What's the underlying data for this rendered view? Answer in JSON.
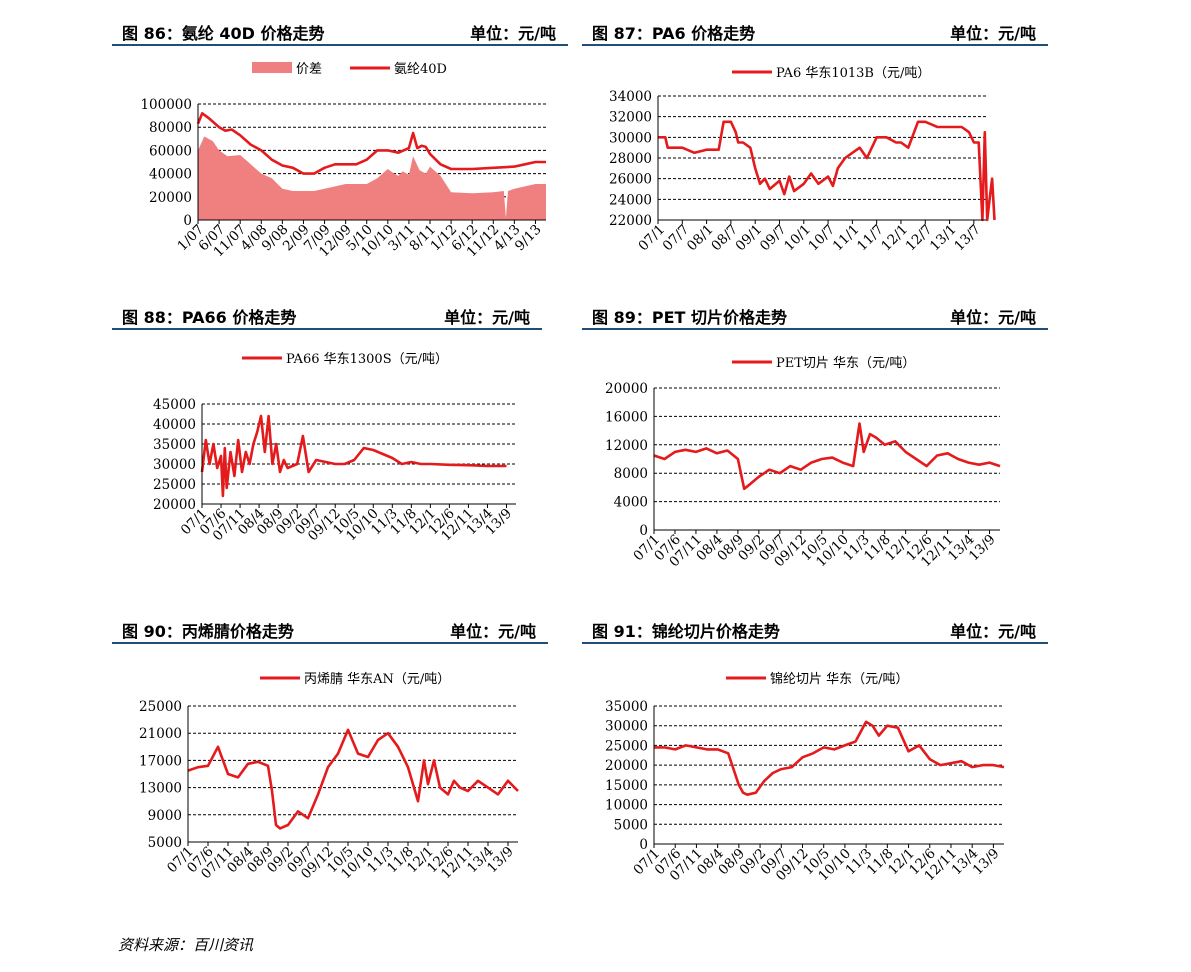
{
  "source": "资料来源：百川资讯",
  "panels": [
    {
      "header": {
        "title": "图 86：氨纶 40D 价格走势",
        "unit": "单位：元/吨"
      },
      "chart_data": {
        "type": "line",
        "ylim": [
          0,
          100000
        ],
        "yticks": [
          "100000",
          "80000",
          "60000",
          "40000",
          "20000",
          "0"
        ],
        "xticks": [
          "1/07",
          "6/07",
          "11/07",
          "4/08",
          "9/08",
          "2/09",
          "7/09",
          "12/09",
          "5/10",
          "10/10",
          "3/11",
          "8/11",
          "1/12",
          "6/12",
          "11/12",
          "4/13",
          "9/13"
        ],
        "series": [
          {
            "name": "价差",
            "kind": "area",
            "color": "#f08080",
            "x": [
              0,
              0.3,
              0.7,
              1,
              1.4,
              2,
              2.5,
              3,
              3.5,
              4,
              4.5,
              5,
              5.5,
              6,
              6.5,
              7,
              7.5,
              8,
              8.5,
              9,
              9.3,
              9.5,
              9.7,
              10,
              10.2,
              10.5,
              10.8,
              11,
              11.5,
              12,
              13,
              14,
              14.5,
              14.6,
              14.7,
              15,
              15.5,
              16,
              16.5
            ],
            "values": [
              60000,
              72000,
              68000,
              60000,
              55000,
              56000,
              48000,
              40000,
              36000,
              27000,
              25000,
              25000,
              25000,
              27000,
              29000,
              31000,
              31000,
              31000,
              36000,
              44000,
              40000,
              38000,
              42000,
              39000,
              55000,
              43000,
              40000,
              46000,
              38000,
              24000,
              23000,
              24000,
              25000,
              2000,
              25000,
              27000,
              29000,
              31000,
              31000
            ]
          },
          {
            "name": "氨纶40D",
            "kind": "line",
            "color": "#e41a1c",
            "x": [
              0,
              0.2,
              0.5,
              1,
              1.3,
              1.6,
              2,
              2.5,
              3,
              3.5,
              4,
              4.5,
              5,
              5.5,
              6,
              6.5,
              7,
              7.5,
              8,
              8.5,
              9,
              9.5,
              10,
              10.2,
              10.4,
              10.6,
              10.8,
              11,
              11.5,
              12,
              12.5,
              13,
              14,
              15,
              15.5,
              16,
              16.5
            ],
            "values": [
              83000,
              92000,
              88000,
              80000,
              77000,
              78000,
              73000,
              65000,
              60000,
              52000,
              47000,
              45000,
              40000,
              40000,
              45000,
              48000,
              48000,
              48000,
              52000,
              60000,
              60000,
              58000,
              62000,
              75000,
              62000,
              64000,
              63000,
              57000,
              48000,
              44000,
              44000,
              44000,
              45000,
              46000,
              48000,
              50000,
              50000
            ]
          }
        ]
      }
    },
    {
      "header": {
        "title": "图 87：PA6 价格走势",
        "unit": "单位：元/吨"
      },
      "chart_data": {
        "type": "line",
        "ylim": [
          22000,
          34000
        ],
        "yticks": [
          "34000",
          "32000",
          "30000",
          "28000",
          "26000",
          "24000",
          "22000"
        ],
        "xticks": [
          "07/1",
          "07/7",
          "08/1",
          "08/7",
          "09/1",
          "09/7",
          "10/1",
          "10/7",
          "11/1",
          "11/7",
          "12/1",
          "12/7",
          "13/1",
          "13/7"
        ],
        "series": [
          {
            "name": "PA6 华东1013B（元/吨）",
            "kind": "line",
            "color": "#e41a1c",
            "x": [
              0,
              0.3,
              0.4,
              1,
              1.5,
              2,
              2.5,
              2.7,
              3,
              3.2,
              3.3,
              3.5,
              3.8,
              4,
              4.2,
              4.4,
              4.6,
              5,
              5.2,
              5.4,
              5.6,
              6,
              6.3,
              6.6,
              7,
              7.2,
              7.4,
              7.7,
              8,
              8.3,
              8.6,
              9,
              9.4,
              9.8,
              10,
              10.3,
              10.7,
              11,
              11.5,
              12,
              12.5,
              12.8,
              13,
              13.2,
              13.35,
              13.45,
              13.55,
              13.65,
              13.75,
              13.85
            ],
            "values": [
              30000,
              30000,
              29000,
              29000,
              28500,
              28800,
              28800,
              31500,
              31500,
              30500,
              29500,
              29500,
              29000,
              27000,
              25500,
              26000,
              25000,
              25800,
              24500,
              26200,
              24800,
              25500,
              26500,
              25500,
              26200,
              25300,
              27000,
              28000,
              28500,
              29000,
              28000,
              30000,
              30000,
              29500,
              29500,
              29000,
              31500,
              31500,
              31000,
              31000,
              31000,
              30500,
              29500,
              29500,
              22000,
              30500,
              22000,
              24000,
              26000,
              22000
            ]
          }
        ]
      }
    },
    {
      "header": {
        "title": "图 88：PA66 价格走势",
        "unit": "单位：元/吨"
      },
      "chart_data": {
        "type": "line",
        "ylim": [
          20000,
          45000
        ],
        "yticks": [
          "45000",
          "40000",
          "35000",
          "30000",
          "25000",
          "20000"
        ],
        "xticks": [
          "07/1",
          "07/6",
          "07/11",
          "08/4",
          "08/9",
          "09/2",
          "09/7",
          "09/12",
          "10/5",
          "10/10",
          "11/3",
          "11/8",
          "12/1",
          "12/6",
          "12/11",
          "13/4",
          "13/9"
        ],
        "series": [
          {
            "name": "PA66 华东1300S（元/吨）",
            "kind": "line",
            "color": "#e41a1c",
            "x": [
              0,
              0.2,
              0.4,
              0.6,
              0.8,
              1,
              1.1,
              1.2,
              1.3,
              1.5,
              1.7,
              1.9,
              2.1,
              2.3,
              2.5,
              2.7,
              2.9,
              3.1,
              3.3,
              3.5,
              3.7,
              3.9,
              4.1,
              4.3,
              4.5,
              5,
              5.3,
              5.6,
              6,
              6.5,
              7,
              7.5,
              8,
              8.5,
              9,
              9.5,
              10,
              10.5,
              11,
              11.5,
              12,
              13,
              14,
              15,
              16
            ],
            "values": [
              28000,
              36000,
              30000,
              35000,
              29000,
              32000,
              22000,
              34000,
              24000,
              33000,
              27000,
              36000,
              28000,
              33000,
              30000,
              35000,
              38000,
              42000,
              33000,
              42000,
              30000,
              35000,
              28000,
              31000,
              29000,
              30000,
              37000,
              28000,
              31000,
              30500,
              30000,
              30000,
              31000,
              34000,
              33500,
              32500,
              31500,
              30000,
              30500,
              30000,
              30000,
              29800,
              29700,
              29500,
              29500
            ]
          }
        ]
      }
    },
    {
      "header": {
        "title": "图 89：PET 切片价格走势",
        "unit": "单位：元/吨"
      },
      "chart_data": {
        "type": "line",
        "ylim": [
          0,
          20000
        ],
        "yticks": [
          "20000",
          "16000",
          "12000",
          "8000",
          "4000",
          "0"
        ],
        "xticks": [
          "07/1",
          "07/6",
          "07/11",
          "08/4",
          "08/9",
          "09/2",
          "09/7",
          "09/12",
          "10/5",
          "10/10",
          "11/3",
          "11/8",
          "12/1",
          "12/6",
          "12/11",
          "13/4",
          "13/9"
        ],
        "series": [
          {
            "name": "PET切片 华东（元/吨）",
            "kind": "line",
            "color": "#e41a1c",
            "x": [
              0,
              0.5,
              1,
              1.5,
              2,
              2.5,
              3,
              3.5,
              4,
              4.3,
              4.6,
              5,
              5.5,
              6,
              6.5,
              7,
              7.5,
              8,
              8.5,
              9,
              9.5,
              9.8,
              10,
              10.3,
              10.6,
              11,
              11.5,
              12,
              12.5,
              13,
              13.5,
              14,
              14.5,
              15,
              15.5,
              16,
              16.5
            ],
            "values": [
              10500,
              10000,
              11000,
              11300,
              11000,
              11500,
              10800,
              11200,
              10000,
              5800,
              6500,
              7500,
              8500,
              8000,
              9000,
              8500,
              9500,
              10000,
              10200,
              9500,
              9000,
              15000,
              11000,
              13500,
              13000,
              12000,
              12500,
              11000,
              10000,
              9000,
              10500,
              10800,
              10000,
              9500,
              9200,
              9500,
              9000
            ]
          }
        ]
      }
    },
    {
      "header": {
        "title": "图 90：丙烯腈价格走势",
        "unit": "单位：元/吨"
      },
      "chart_data": {
        "type": "line",
        "ylim": [
          5000,
          25000
        ],
        "yticks": [
          "25000",
          "21000",
          "17000",
          "13000",
          "9000",
          "5000"
        ],
        "xticks": [
          "07/1",
          "07/6",
          "07/11",
          "08/4",
          "08/9",
          "09/2",
          "09/7",
          "09/12",
          "10/5",
          "10/10",
          "11/3",
          "11/8",
          "12/1",
          "12/6",
          "12/11",
          "13/4",
          "13/9"
        ],
        "series": [
          {
            "name": "丙烯腈 华东AN（元/吨）",
            "kind": "line",
            "color": "#e41a1c",
            "x": [
              0,
              0.5,
              1,
              1.5,
              2,
              2.5,
              3,
              3.5,
              4,
              4.2,
              4.4,
              4.6,
              5,
              5.5,
              6,
              6.5,
              7,
              7.5,
              8,
              8.5,
              9,
              9.5,
              10,
              10.5,
              11,
              11.5,
              11.8,
              12,
              12.3,
              12.6,
              13,
              13.3,
              13.6,
              14,
              14.5,
              15,
              15.5,
              16,
              16.5
            ],
            "values": [
              15500,
              16000,
              16200,
              19000,
              15000,
              14500,
              16500,
              16800,
              16200,
              12500,
              7500,
              7000,
              7500,
              9500,
              8500,
              12000,
              16000,
              18000,
              21500,
              18000,
              17500,
              20000,
              21000,
              19000,
              16000,
              11000,
              17000,
              13500,
              17000,
              13000,
              12000,
              14000,
              13000,
              12500,
              14000,
              13000,
              12000,
              14000,
              12500
            ]
          }
        ]
      }
    },
    {
      "header": {
        "title": "图 91：锦纶切片价格走势",
        "unit": "单位：元/吨"
      },
      "chart_data": {
        "type": "line",
        "ylim": [
          0,
          35000
        ],
        "yticks": [
          "35000",
          "30000",
          "25000",
          "20000",
          "15000",
          "10000",
          "5000",
          "0"
        ],
        "xticks": [
          "07/1",
          "07/6",
          "07/11",
          "08/4",
          "08/9",
          "09/2",
          "09/7",
          "09/12",
          "10/5",
          "10/10",
          "11/3",
          "11/8",
          "12/1",
          "12/6",
          "12/11",
          "13/4",
          "13/9"
        ],
        "series": [
          {
            "name": "锦纶切片 华东（元/吨）",
            "kind": "line",
            "color": "#e41a1c",
            "x": [
              0,
              0.5,
              1,
              1.5,
              2,
              2.5,
              3,
              3.5,
              4,
              4.2,
              4.4,
              4.8,
              5.2,
              5.6,
              6,
              6.5,
              7,
              7.5,
              8,
              8.5,
              9,
              9.5,
              10,
              10.3,
              10.6,
              11,
              11.5,
              12,
              12.5,
              13,
              13.5,
              14,
              14.5,
              15,
              15.5,
              16,
              16.5
            ],
            "values": [
              24500,
              24500,
              24000,
              25000,
              24500,
              24000,
              24000,
              23000,
              15000,
              13000,
              12500,
              13000,
              16000,
              18000,
              19000,
              19500,
              22000,
              23000,
              24500,
              24000,
              25000,
              26000,
              31000,
              30000,
              27500,
              30000,
              29500,
              23500,
              25000,
              21500,
              20000,
              20500,
              21000,
              19500,
              20000,
              20000,
              19500
            ]
          }
        ]
      }
    }
  ]
}
